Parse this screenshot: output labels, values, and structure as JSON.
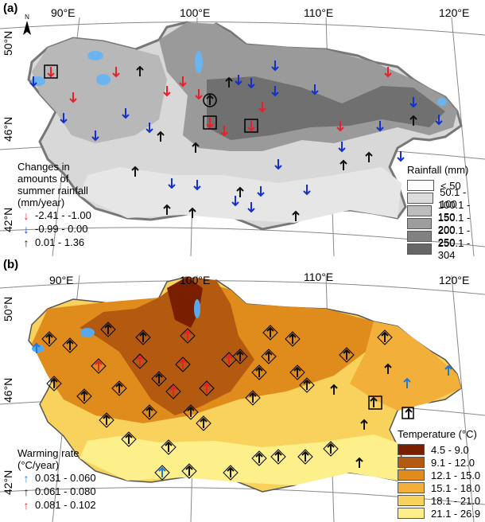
{
  "panel_a": {
    "label": "(a)",
    "lon_ticks": [
      "90°E",
      "100°E",
      "110°E",
      "120°E"
    ],
    "lat_ticks": [
      "50°N",
      "46°N",
      "42°N"
    ],
    "change_legend": {
      "title_lines": [
        "Changes in",
        "amounts of",
        "summer rainfall",
        "(mm/year)"
      ],
      "items": [
        {
          "label": "-2.41 - -1.00",
          "color": "#e8202a"
        },
        {
          "label": "-0.99 - 0.00",
          "color": "#1530c8"
        },
        {
          "label": "0.01 - 1.36",
          "color": "#111111"
        }
      ]
    },
    "rain_legend": {
      "title": "Rainfall (mm)",
      "items": [
        {
          "label": "< 50",
          "color": "#ffffff"
        },
        {
          "label": "50.1 - 100",
          "color": "#dcdcdc"
        },
        {
          "label": "100.1 - 150",
          "color": "#bdbdbd"
        },
        {
          "label": "150.1 - 200",
          "color": "#9d9d9d"
        },
        {
          "label": "200.1 - 250",
          "color": "#818181"
        },
        {
          "label": "250.1 - 304",
          "color": "#666666"
        }
      ]
    }
  },
  "panel_b": {
    "label": "(b)",
    "lon_ticks": [
      "90°E",
      "100°E",
      "110°E",
      "120°E"
    ],
    "lat_ticks": [
      "50°N",
      "46°N",
      "42°N"
    ],
    "warming_legend": {
      "title_lines": [
        "Warming rate",
        "(°C/year)"
      ],
      "items": [
        {
          "label": "0.031 - 0.060",
          "color": "#1a7ae0"
        },
        {
          "label": "0.061 - 0.080",
          "color": "#111111"
        },
        {
          "label": "0.081 - 0.102",
          "color": "#e8202a"
        }
      ]
    },
    "temp_legend": {
      "title": "Temperature (°C)",
      "items": [
        {
          "label": "4.5 - 9.0",
          "color": "#7a1e00"
        },
        {
          "label": "9.1 - 12.0",
          "color": "#b45a10"
        },
        {
          "label": "12.1 - 15.0",
          "color": "#e08c1c"
        },
        {
          "label": "15.1 - 18.0",
          "color": "#f2b03a"
        },
        {
          "label": "18.1 - 21.0",
          "color": "#f8d25c"
        },
        {
          "label": "21.1 - 26.9",
          "color": "#fdf08a"
        }
      ]
    }
  }
}
